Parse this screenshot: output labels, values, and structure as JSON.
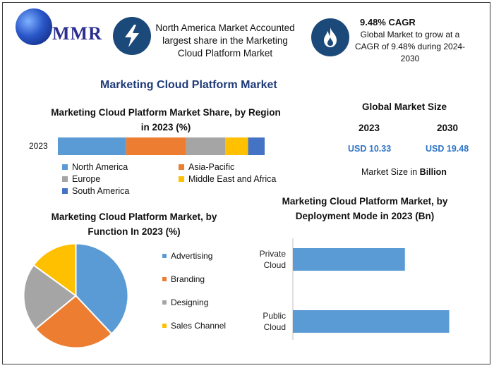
{
  "logo": {
    "text": "MMR"
  },
  "header": {
    "market_text": "North America Market Accounted largest share in the Marketing Cloud Platform Market",
    "cagr_title": "9.48% CAGR",
    "cagr_text": "Global Market to grow at a CAGR of 9.48% during 2024-2030",
    "bolt_icon": "lightning-bolt-icon",
    "flame_icon": "flame-icon",
    "icon_bg": "#1b4a7a"
  },
  "main_title": "Marketing Cloud Platform Market",
  "market_size": {
    "title": "Global Market Size",
    "year1": "2023",
    "year2": "2030",
    "value1": "USD 10.33",
    "value2": "USD 19.48",
    "unit_note_prefix": "Market Size in ",
    "unit_note_bold": "Billion"
  },
  "chart_data": [
    {
      "type": "bar",
      "stacked": true,
      "orientation": "horizontal",
      "title": "Marketing Cloud Platform Market Share, by Region in 2023 (%)",
      "categories": [
        "2023"
      ],
      "series": [
        {
          "name": "North America",
          "color": "#5b9bd5",
          "values": [
            33
          ]
        },
        {
          "name": "Asia-Pacific",
          "color": "#ed7d31",
          "values": [
            29
          ]
        },
        {
          "name": "Europe",
          "color": "#a5a5a5",
          "values": [
            19
          ]
        },
        {
          "name": "Middle East and Africa",
          "color": "#ffc000",
          "values": [
            11
          ]
        },
        {
          "name": "South America",
          "color": "#4472c4",
          "values": [
            8
          ]
        }
      ],
      "legend": "bottom"
    },
    {
      "type": "pie",
      "title": "Marketing Cloud Platform Market, by Function In 2023 (%)",
      "labels": [
        "Advertising",
        "Branding",
        "Designing",
        "Sales Channel"
      ],
      "values": [
        38,
        26,
        21,
        15
      ],
      "colors": [
        "#5b9bd5",
        "#ed7d31",
        "#a5a5a5",
        "#ffc000"
      ],
      "legend": "right"
    },
    {
      "type": "bar",
      "orientation": "horizontal",
      "title": "Marketing Cloud Platform Market, by Deployment Mode in 2023 (Bn)",
      "categories": [
        "Private Cloud",
        "Public Cloud"
      ],
      "category_lines": [
        [
          "Private",
          "Cloud"
        ],
        [
          "Public",
          "Cloud"
        ]
      ],
      "values": [
        4.3,
        6.0
      ],
      "xlim": [
        0,
        6.5
      ],
      "color": "#5b9bd5",
      "grid": false
    }
  ]
}
